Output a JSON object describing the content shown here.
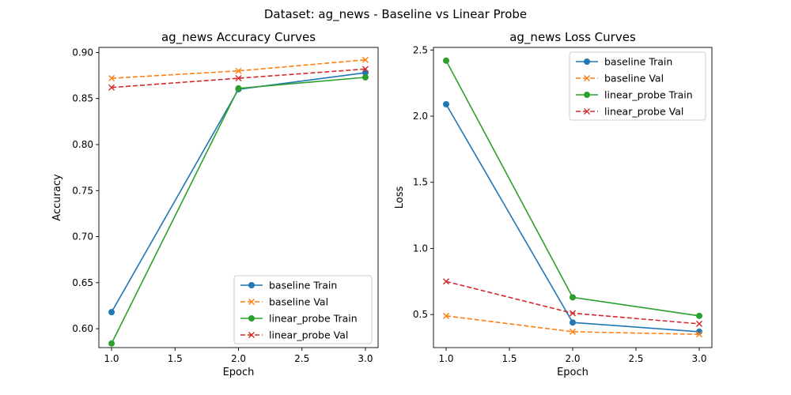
{
  "figure": {
    "suptitle": "Dataset: ag_news - Baseline vs Linear Probe"
  },
  "chart_data": [
    {
      "type": "line",
      "title": "ag_news Accuracy Curves",
      "xlabel": "Epoch",
      "ylabel": "Accuracy",
      "x": [
        1.0,
        2.0,
        3.0
      ],
      "xlim": [
        0.9,
        3.1
      ],
      "ylim": [
        0.5795,
        0.9055
      ],
      "xticks": [
        1.0,
        1.5,
        2.0,
        2.5,
        3.0
      ],
      "xtick_labels": [
        "1.0",
        "1.5",
        "2.0",
        "2.5",
        "3.0"
      ],
      "yticks": [
        0.6,
        0.65,
        0.7,
        0.75,
        0.8,
        0.85,
        0.9
      ],
      "ytick_labels": [
        "0.60",
        "0.65",
        "0.70",
        "0.75",
        "0.80",
        "0.85",
        "0.90"
      ],
      "grid": false,
      "legend_position": "lower-right",
      "series": [
        {
          "name": "baseline Train",
          "values": [
            0.618,
            0.86,
            0.878
          ],
          "color": "#1f77b4",
          "linestyle": "solid",
          "marker": "circle"
        },
        {
          "name": "baseline Val",
          "values": [
            0.872,
            0.88,
            0.892
          ],
          "color": "#ff7f0e",
          "linestyle": "dashed",
          "marker": "x"
        },
        {
          "name": "linear_probe Train",
          "values": [
            0.584,
            0.861,
            0.873
          ],
          "color": "#2ca02c",
          "linestyle": "solid",
          "marker": "circle"
        },
        {
          "name": "linear_probe Val",
          "values": [
            0.862,
            0.872,
            0.882
          ],
          "color": "#d62728",
          "linestyle": "dashed",
          "marker": "x"
        }
      ]
    },
    {
      "type": "line",
      "title": "ag_news Loss Curves",
      "xlabel": "Epoch",
      "ylabel": "Loss",
      "x": [
        1.0,
        2.0,
        3.0
      ],
      "xlim": [
        0.9,
        3.1
      ],
      "ylim": [
        0.25,
        2.52
      ],
      "xticks": [
        1.0,
        1.5,
        2.0,
        2.5,
        3.0
      ],
      "xtick_labels": [
        "1.0",
        "1.5",
        "2.0",
        "2.5",
        "3.0"
      ],
      "yticks": [
        0.5,
        1.0,
        1.5,
        2.0,
        2.5
      ],
      "ytick_labels": [
        "0.5",
        "1.0",
        "1.5",
        "2.0",
        "2.5"
      ],
      "grid": false,
      "legend_position": "upper-right",
      "series": [
        {
          "name": "baseline Train",
          "values": [
            2.09,
            0.44,
            0.37
          ],
          "color": "#1f77b4",
          "linestyle": "solid",
          "marker": "circle"
        },
        {
          "name": "baseline Val",
          "values": [
            0.49,
            0.37,
            0.35
          ],
          "color": "#ff7f0e",
          "linestyle": "dashed",
          "marker": "x"
        },
        {
          "name": "linear_probe Train",
          "values": [
            2.42,
            0.63,
            0.49
          ],
          "color": "#2ca02c",
          "linestyle": "solid",
          "marker": "circle"
        },
        {
          "name": "linear_probe Val",
          "values": [
            0.75,
            0.51,
            0.43
          ],
          "color": "#d62728",
          "linestyle": "dashed",
          "marker": "x"
        }
      ]
    }
  ]
}
